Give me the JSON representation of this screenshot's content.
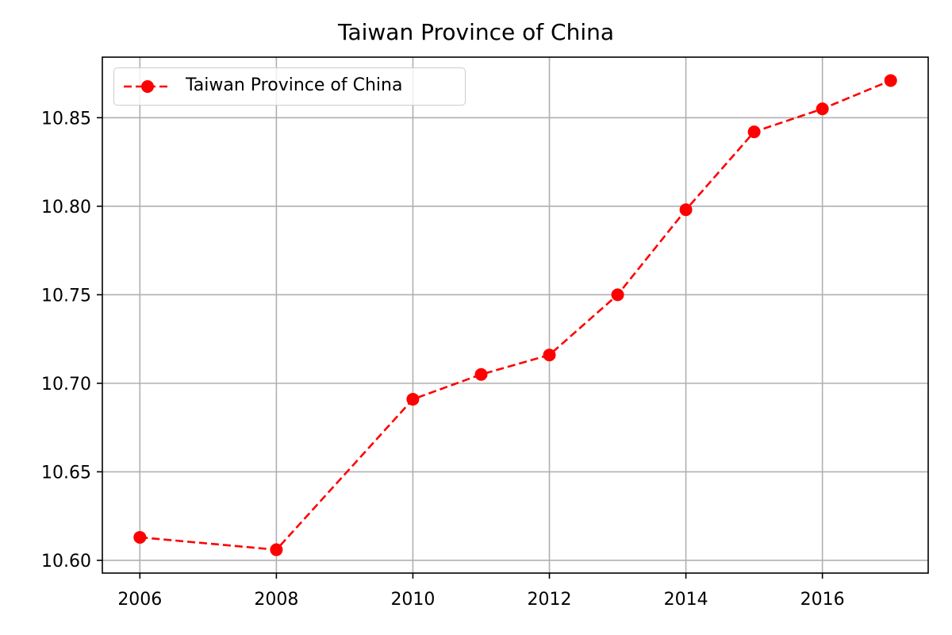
{
  "chart_data": {
    "type": "line",
    "title": "Taiwan Province of China",
    "xlabel": "",
    "ylabel": "",
    "x": [
      2006,
      2008,
      2010,
      2011,
      2012,
      2013,
      2014,
      2015,
      2016,
      2017
    ],
    "series": [
      {
        "name": "Taiwan Province of China",
        "values": [
          10.613,
          10.606,
          10.691,
          10.705,
          10.716,
          10.75,
          10.798,
          10.842,
          10.855,
          10.871
        ],
        "color": "#ff0000",
        "line_style": "dashed",
        "marker": "circle"
      }
    ],
    "xlim": [
      2005.45,
      2017.55
    ],
    "ylim": [
      10.5928,
      10.8842
    ],
    "x_ticks": [
      2006,
      2008,
      2010,
      2012,
      2014,
      2016
    ],
    "y_ticks": [
      10.6,
      10.65,
      10.7,
      10.75,
      10.8,
      10.85
    ],
    "y_tick_labels": [
      "10.60",
      "10.65",
      "10.70",
      "10.75",
      "10.80",
      "10.85"
    ],
    "grid": true,
    "legend_position": "upper-left"
  }
}
